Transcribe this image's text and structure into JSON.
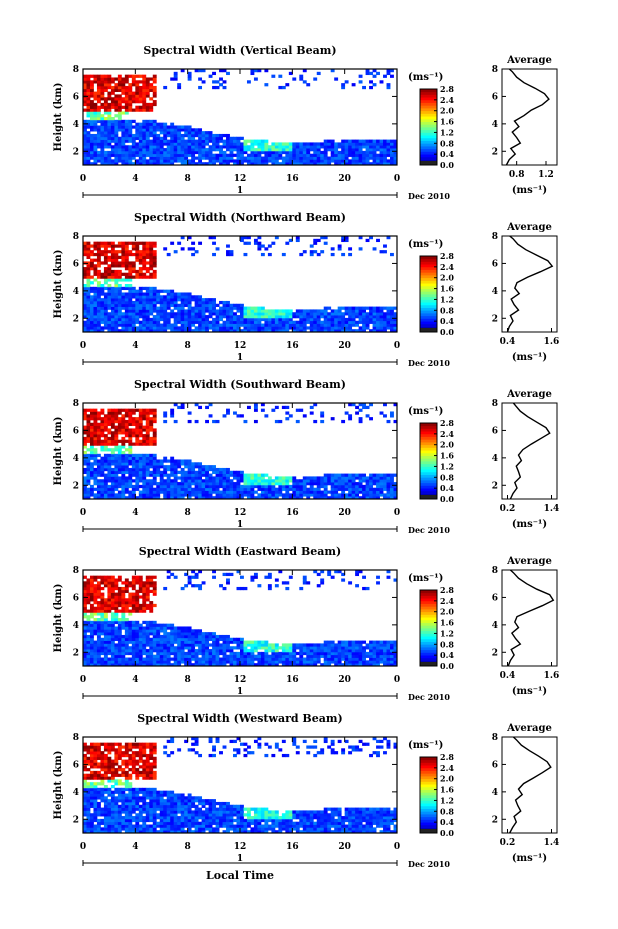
{
  "figure": {
    "height_label": "Height (km)",
    "colorbar_unit": "(ms⁻¹)",
    "date_label": "Dec 2010",
    "day_label": "1",
    "xlabel": "Local Time",
    "avg_title": "Average",
    "avg_unit": "(ms⁻¹)"
  },
  "chart_data": [
    {
      "type": "heatmap",
      "title": "Spectral Width (Vertical Beam)",
      "x_ticks": [
        "0",
        "4",
        "8",
        "12",
        "16",
        "20",
        "0"
      ],
      "y_ticks": [
        "2",
        "4",
        "6",
        "8"
      ],
      "colorbar_ticks": [
        "0.0",
        "0.4",
        "0.8",
        "1.2",
        "1.6",
        "2.0",
        "2.4",
        "2.8"
      ],
      "profile": {
        "x_ticks": [
          "0.8",
          "1.2"
        ],
        "xlim": [
          0.6,
          1.35
        ],
        "points": [
          [
            0.66,
            1.0
          ],
          [
            0.7,
            1.4
          ],
          [
            0.78,
            1.8
          ],
          [
            0.72,
            2.2
          ],
          [
            0.85,
            2.6
          ],
          [
            0.8,
            3.0
          ],
          [
            0.74,
            3.4
          ],
          [
            0.83,
            3.8
          ],
          [
            0.77,
            4.2
          ],
          [
            0.9,
            4.6
          ],
          [
            1.0,
            5.0
          ],
          [
            1.15,
            5.4
          ],
          [
            1.24,
            5.8
          ],
          [
            1.18,
            6.2
          ],
          [
            1.05,
            6.6
          ],
          [
            0.9,
            7.0
          ],
          [
            0.8,
            7.4
          ],
          [
            0.74,
            7.8
          ],
          [
            0.7,
            8.2
          ]
        ]
      }
    },
    {
      "type": "heatmap",
      "title": "Spectral Width (Northward Beam)",
      "x_ticks": [
        "0",
        "4",
        "8",
        "12",
        "16",
        "20",
        "0"
      ],
      "y_ticks": [
        "2",
        "4",
        "6",
        "8"
      ],
      "colorbar_ticks": [
        "0.0",
        "0.4",
        "0.8",
        "1.2",
        "1.6",
        "2.0",
        "2.4",
        "2.8"
      ],
      "profile": {
        "x_ticks": [
          "0.4",
          "1.6"
        ],
        "xlim": [
          0.25,
          1.75
        ],
        "points": [
          [
            0.4,
            1.0
          ],
          [
            0.45,
            1.4
          ],
          [
            0.55,
            1.8
          ],
          [
            0.48,
            2.2
          ],
          [
            0.7,
            2.6
          ],
          [
            0.58,
            3.0
          ],
          [
            0.5,
            3.4
          ],
          [
            0.72,
            3.8
          ],
          [
            0.6,
            4.2
          ],
          [
            0.66,
            4.6
          ],
          [
            0.95,
            5.0
          ],
          [
            1.3,
            5.4
          ],
          [
            1.62,
            5.8
          ],
          [
            1.5,
            6.2
          ],
          [
            1.2,
            6.6
          ],
          [
            0.9,
            7.0
          ],
          [
            0.68,
            7.4
          ],
          [
            0.55,
            7.8
          ],
          [
            0.46,
            8.2
          ]
        ]
      }
    },
    {
      "type": "heatmap",
      "title": "Spectral Width (Southward Beam)",
      "x_ticks": [
        "0",
        "4",
        "8",
        "12",
        "16",
        "20",
        "0"
      ],
      "y_ticks": [
        "2",
        "4",
        "6",
        "8"
      ],
      "colorbar_ticks": [
        "0.0",
        "0.4",
        "0.8",
        "1.2",
        "1.6",
        "2.0",
        "2.4",
        "2.8"
      ],
      "profile": {
        "x_ticks": [
          "0.2",
          "1.4"
        ],
        "xlim": [
          0.05,
          1.55
        ],
        "points": [
          [
            0.28,
            1.0
          ],
          [
            0.35,
            1.4
          ],
          [
            0.46,
            1.8
          ],
          [
            0.4,
            2.2
          ],
          [
            0.55,
            2.6
          ],
          [
            0.5,
            3.0
          ],
          [
            0.44,
            3.4
          ],
          [
            0.58,
            3.8
          ],
          [
            0.5,
            4.2
          ],
          [
            0.62,
            4.6
          ],
          [
            0.85,
            5.0
          ],
          [
            1.1,
            5.4
          ],
          [
            1.35,
            5.8
          ],
          [
            1.25,
            6.2
          ],
          [
            1.0,
            6.6
          ],
          [
            0.75,
            7.0
          ],
          [
            0.55,
            7.4
          ],
          [
            0.42,
            7.8
          ],
          [
            0.36,
            8.2
          ]
        ]
      }
    },
    {
      "type": "heatmap",
      "title": "Spectral Width (Eastward Beam)",
      "x_ticks": [
        "0",
        "4",
        "8",
        "12",
        "16",
        "20",
        "0"
      ],
      "y_ticks": [
        "2",
        "4",
        "6",
        "8"
      ],
      "colorbar_ticks": [
        "0.0",
        "0.4",
        "0.8",
        "1.2",
        "1.6",
        "2.0",
        "2.4",
        "2.8"
      ],
      "profile": {
        "x_ticks": [
          "0.4",
          "1.6"
        ],
        "xlim": [
          0.25,
          1.75
        ],
        "points": [
          [
            0.42,
            1.0
          ],
          [
            0.48,
            1.4
          ],
          [
            0.58,
            1.8
          ],
          [
            0.5,
            2.2
          ],
          [
            0.75,
            2.6
          ],
          [
            0.62,
            3.0
          ],
          [
            0.52,
            3.4
          ],
          [
            0.7,
            3.8
          ],
          [
            0.6,
            4.2
          ],
          [
            0.66,
            4.6
          ],
          [
            1.0,
            5.0
          ],
          [
            1.35,
            5.4
          ],
          [
            1.65,
            5.8
          ],
          [
            1.55,
            6.2
          ],
          [
            1.2,
            6.6
          ],
          [
            0.92,
            7.0
          ],
          [
            0.7,
            7.4
          ],
          [
            0.56,
            7.8
          ],
          [
            0.48,
            8.2
          ]
        ]
      }
    },
    {
      "type": "heatmap",
      "title": "Spectral Width (Westward Beam)",
      "x_ticks": [
        "0",
        "4",
        "8",
        "12",
        "16",
        "20",
        "0"
      ],
      "y_ticks": [
        "2",
        "4",
        "6",
        "8"
      ],
      "colorbar_ticks": [
        "0.0",
        "0.4",
        "0.8",
        "1.2",
        "1.6",
        "2.0",
        "2.4",
        "2.8"
      ],
      "profile": {
        "x_ticks": [
          "0.2",
          "1.4"
        ],
        "xlim": [
          0.05,
          1.55
        ],
        "points": [
          [
            0.26,
            1.0
          ],
          [
            0.34,
            1.4
          ],
          [
            0.44,
            1.8
          ],
          [
            0.38,
            2.2
          ],
          [
            0.56,
            2.6
          ],
          [
            0.48,
            3.0
          ],
          [
            0.42,
            3.4
          ],
          [
            0.6,
            3.8
          ],
          [
            0.5,
            4.2
          ],
          [
            0.64,
            4.6
          ],
          [
            0.9,
            5.0
          ],
          [
            1.15,
            5.4
          ],
          [
            1.38,
            5.8
          ],
          [
            1.28,
            6.2
          ],
          [
            1.05,
            6.6
          ],
          [
            0.8,
            7.0
          ],
          [
            0.58,
            7.4
          ],
          [
            0.44,
            7.8
          ],
          [
            0.36,
            8.2
          ]
        ]
      }
    }
  ]
}
